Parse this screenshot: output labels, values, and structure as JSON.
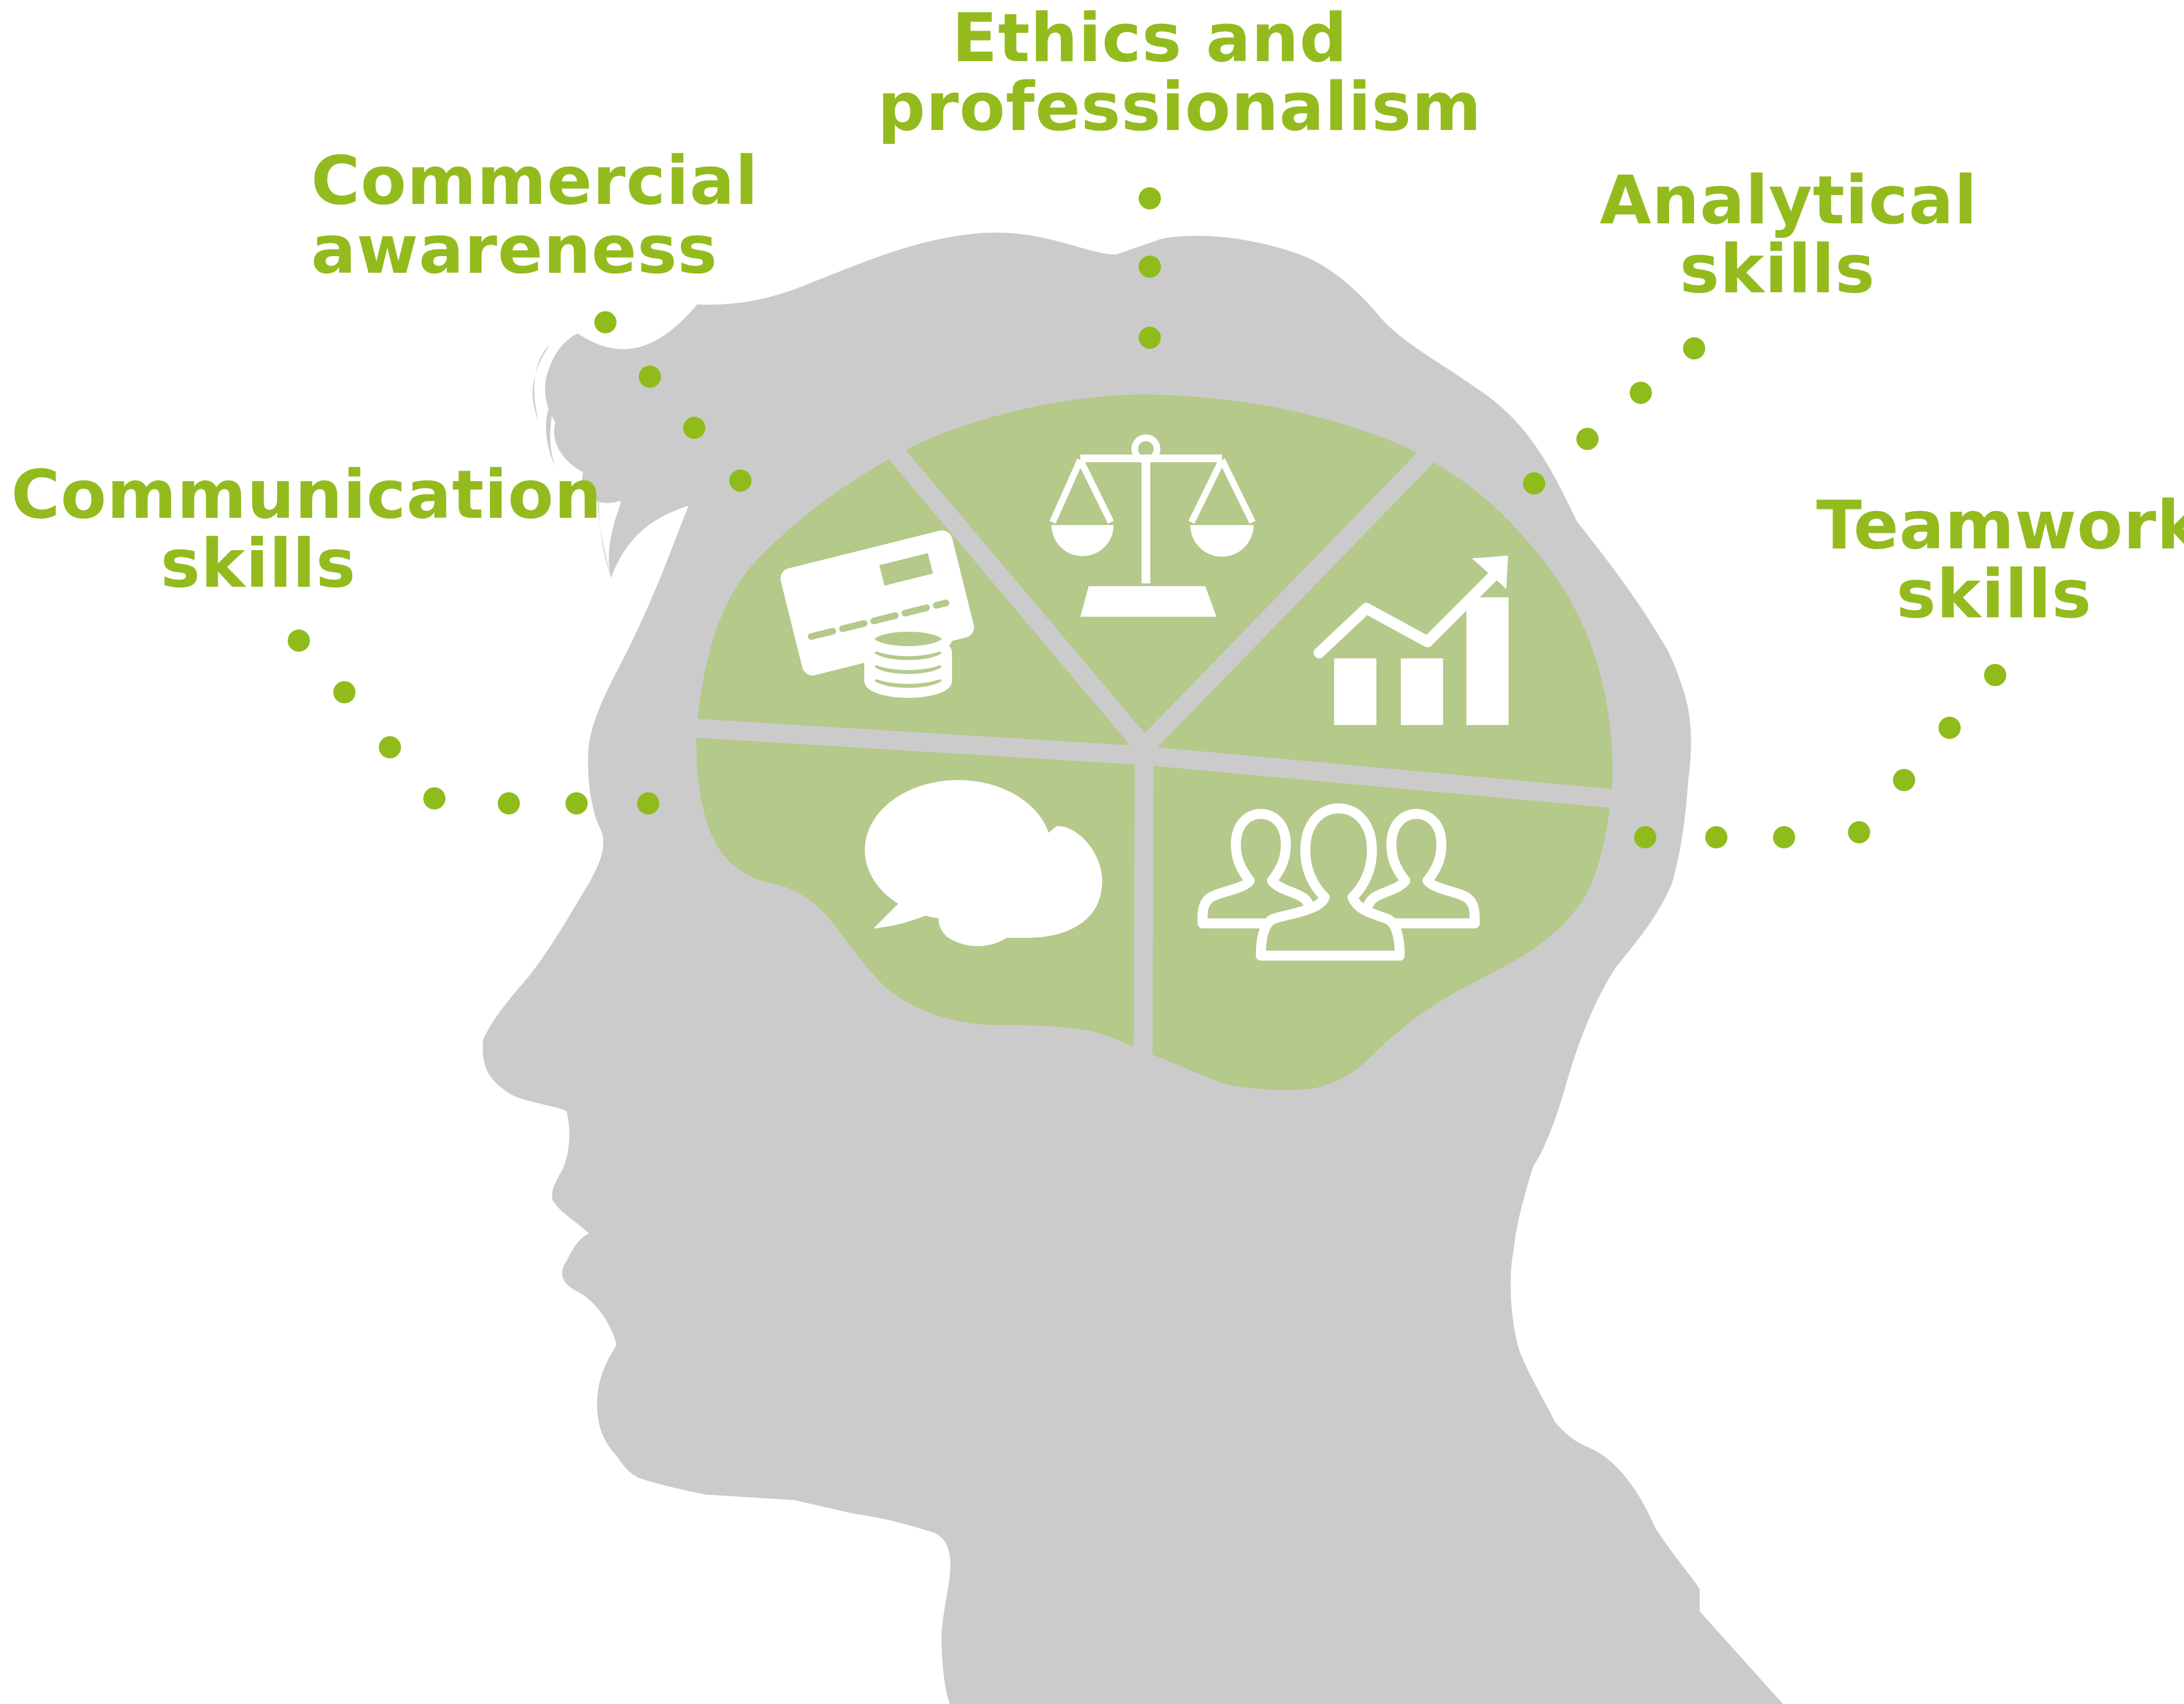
{
  "colors": {
    "label_green": "#94bb1e",
    "dot_green": "#8fbc1a",
    "head_gray": "#cbcbcb",
    "brain_green": "#b5c98a",
    "icon_white": "#ffffff"
  },
  "labels": {
    "communication": {
      "line1": "Communication",
      "line2": "skills"
    },
    "commercial": {
      "line1": "Commercial",
      "line2": "awareness"
    },
    "ethics": {
      "line1": "Ethics and",
      "line2": "professionalism"
    },
    "analytical": {
      "line1": "Analytical",
      "line2": "skills"
    },
    "teamwork": {
      "line1": "Teamwork",
      "line2": "skills"
    }
  },
  "brain_sections": [
    {
      "skill": "commercial",
      "icon": "credit-card-coins-icon"
    },
    {
      "skill": "ethics",
      "icon": "balance-scale-icon"
    },
    {
      "skill": "analytical",
      "icon": "rising-bar-chart-icon"
    },
    {
      "skill": "communication",
      "icon": "speech-bubbles-icon"
    },
    {
      "skill": "teamwork",
      "icon": "group-of-people-icon"
    }
  ]
}
